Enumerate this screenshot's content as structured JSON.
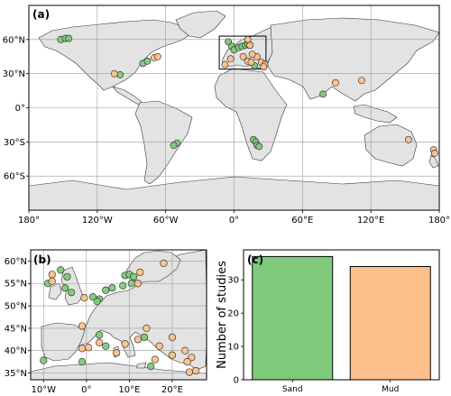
{
  "colors": {
    "sand": "#7ec97a",
    "mud": "#fdc08a",
    "land": "#e3e3e3",
    "grid": "#9a9a9a"
  },
  "chart_data": [
    {
      "panel": "(a)",
      "type": "scatter",
      "projection": "PlateCarree",
      "xlim": [
        -180,
        180
      ],
      "ylim": [
        -90,
        90
      ],
      "x_ticks": [
        -180,
        -120,
        -60,
        0,
        60,
        120,
        180
      ],
      "x_tick_labels": [
        "180°",
        "120°W",
        "60°W",
        "0°",
        "60°E",
        "120°E",
        "180°"
      ],
      "y_ticks": [
        60,
        30,
        0,
        -30,
        -60
      ],
      "y_tick_labels": [
        "60°N",
        "30°N",
        "0°",
        "30°S",
        "60°S"
      ],
      "grid": true,
      "inset_box": {
        "lon": [
          -13,
          28
        ],
        "lat": [
          34,
          63
        ]
      },
      "series": [
        {
          "category": "sand",
          "points": [
            [
              -152,
              60
            ],
            [
              -148,
              61
            ],
            [
              -145,
              61
            ],
            [
              -80,
              39
            ],
            [
              -76,
              41
            ],
            [
              -100,
              29
            ],
            [
              -50,
              -31
            ],
            [
              -53,
              -33
            ],
            [
              -5,
              58
            ],
            [
              -2,
              54
            ],
            [
              0,
              51
            ],
            [
              4,
              53
            ],
            [
              7,
              54
            ],
            [
              10,
              55
            ],
            [
              12,
              56
            ],
            [
              14,
              55
            ],
            [
              18,
              37
            ],
            [
              17,
              -28
            ],
            [
              19,
              -30
            ],
            [
              20,
              -33
            ],
            [
              22,
              -34
            ],
            [
              78,
              12
            ]
          ]
        },
        {
          "category": "mud",
          "points": [
            [
              -70,
              44
            ],
            [
              -67,
              45
            ],
            [
              -105,
              30
            ],
            [
              -8,
              38
            ],
            [
              -3,
              43
            ],
            [
              8,
              45
            ],
            [
              12,
              41
            ],
            [
              15,
              40
            ],
            [
              20,
              45
            ],
            [
              24,
              40
            ],
            [
              27,
              38
            ],
            [
              26,
              36
            ],
            [
              14,
              55
            ],
            [
              16,
              47
            ],
            [
              12,
              60
            ],
            [
              89,
              22
            ],
            [
              112,
              24
            ],
            [
              153,
              -28
            ],
            [
              175,
              -37
            ],
            [
              176,
              -40
            ]
          ]
        }
      ]
    },
    {
      "panel": "(b)",
      "type": "scatter",
      "projection": "PlateCarree",
      "xlim": [
        -13,
        28
      ],
      "ylim": [
        33.5,
        62.5
      ],
      "x_ticks": [
        -10,
        0,
        10,
        20
      ],
      "x_tick_labels": [
        "10°W",
        "0°",
        "10°E",
        "20°E"
      ],
      "y_ticks": [
        60,
        55,
        50,
        45,
        40,
        35
      ],
      "y_tick_labels": [
        "60°N",
        "55°N",
        "50°N",
        "45°N",
        "40°N",
        "35°N"
      ],
      "grid": true,
      "series": [
        {
          "category": "sand",
          "points": [
            [
              -6,
              58
            ],
            [
              -4.5,
              56.5
            ],
            [
              -9,
              55
            ],
            [
              -5,
              54
            ],
            [
              -3.5,
              53
            ],
            [
              1.5,
              52
            ],
            [
              3,
              51.5
            ],
            [
              2.5,
              51
            ],
            [
              4.5,
              53.5
            ],
            [
              6,
              54
            ],
            [
              9,
              56.8
            ],
            [
              10,
              57
            ],
            [
              11,
              56.5
            ],
            [
              10.5,
              55
            ],
            [
              8.5,
              54.5
            ],
            [
              -10,
              37.8
            ],
            [
              -1,
              37.5
            ],
            [
              4.5,
              41
            ],
            [
              3,
              43.5
            ],
            [
              13.5,
              43
            ],
            [
              15,
              36.5
            ]
          ]
        },
        {
          "category": "mud",
          "points": [
            [
              -8,
              57
            ],
            [
              -8,
              55.5
            ],
            [
              -0.5,
              51.8
            ],
            [
              12,
              55
            ],
            [
              12.5,
              57.5
            ],
            [
              18,
              59.5
            ],
            [
              -1,
              45.5
            ],
            [
              -1,
              40.5
            ],
            [
              0.5,
              40.7
            ],
            [
              3,
              41.8
            ],
            [
              7,
              39.5
            ],
            [
              9,
              41.5
            ],
            [
              12,
              42.5
            ],
            [
              14,
              45
            ],
            [
              17,
              41
            ],
            [
              16,
              38
            ],
            [
              20,
              39
            ],
            [
              23,
              40
            ],
            [
              24.5,
              38.5
            ],
            [
              23.5,
              37.5
            ],
            [
              24,
              35.2
            ],
            [
              25.5,
              35.5
            ],
            [
              20,
              43
            ]
          ]
        }
      ]
    },
    {
      "panel": "(c)",
      "type": "bar",
      "categories": [
        "Sand",
        "Mud"
      ],
      "values": [
        37,
        34
      ],
      "colors": [
        "#7ec97a",
        "#fdc08a"
      ],
      "ylabel": "Number of studies",
      "ylim": [
        0,
        39
      ],
      "y_ticks": [
        0,
        10,
        20,
        30
      ]
    }
  ]
}
